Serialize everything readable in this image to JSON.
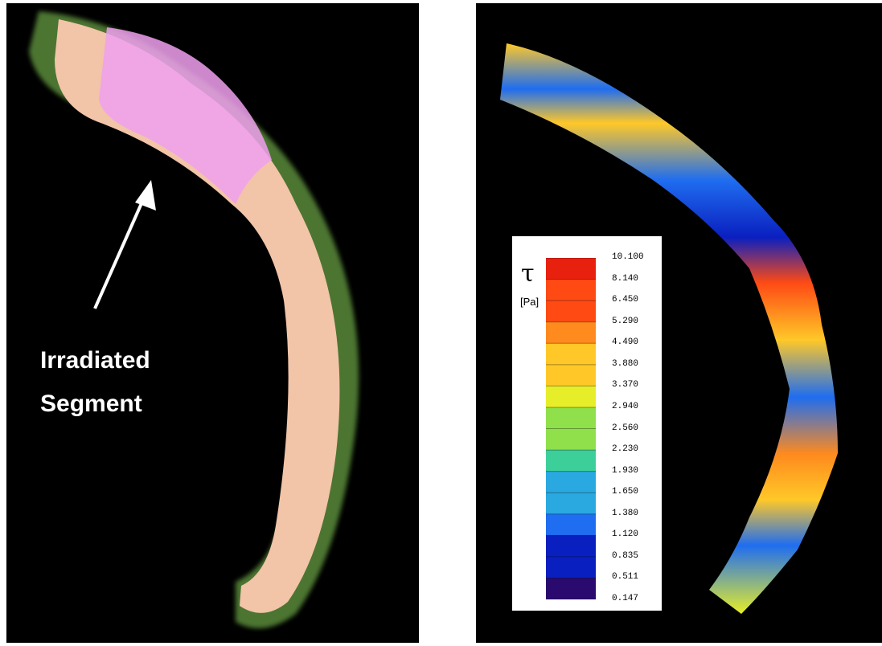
{
  "left_panel": {
    "annotation": {
      "line1": "Irradiated",
      "line2": "Segment"
    },
    "colors": {
      "outer_wall": "#5a8a3a",
      "lumen": "#f2c4a8",
      "irradiated": "#f0a0ee"
    }
  },
  "right_panel": {
    "legend": {
      "symbol": "τ",
      "unit": "[Pa]",
      "ticks": [
        "10.100",
        "8.140",
        "6.450",
        "5.290",
        "4.490",
        "3.880",
        "3.370",
        "2.940",
        "2.560",
        "2.230",
        "1.930",
        "1.650",
        "1.380",
        "1.120",
        "0.835",
        "0.511",
        "0.147"
      ],
      "colormap": [
        "#2a0a6e",
        "#0a1fbf",
        "#1f6df0",
        "#2aa8e0",
        "#3ccf9a",
        "#8fe04a",
        "#e6ee2a",
        "#ffc828",
        "#ff8a1e",
        "#ff4a14",
        "#e8200e"
      ]
    }
  }
}
